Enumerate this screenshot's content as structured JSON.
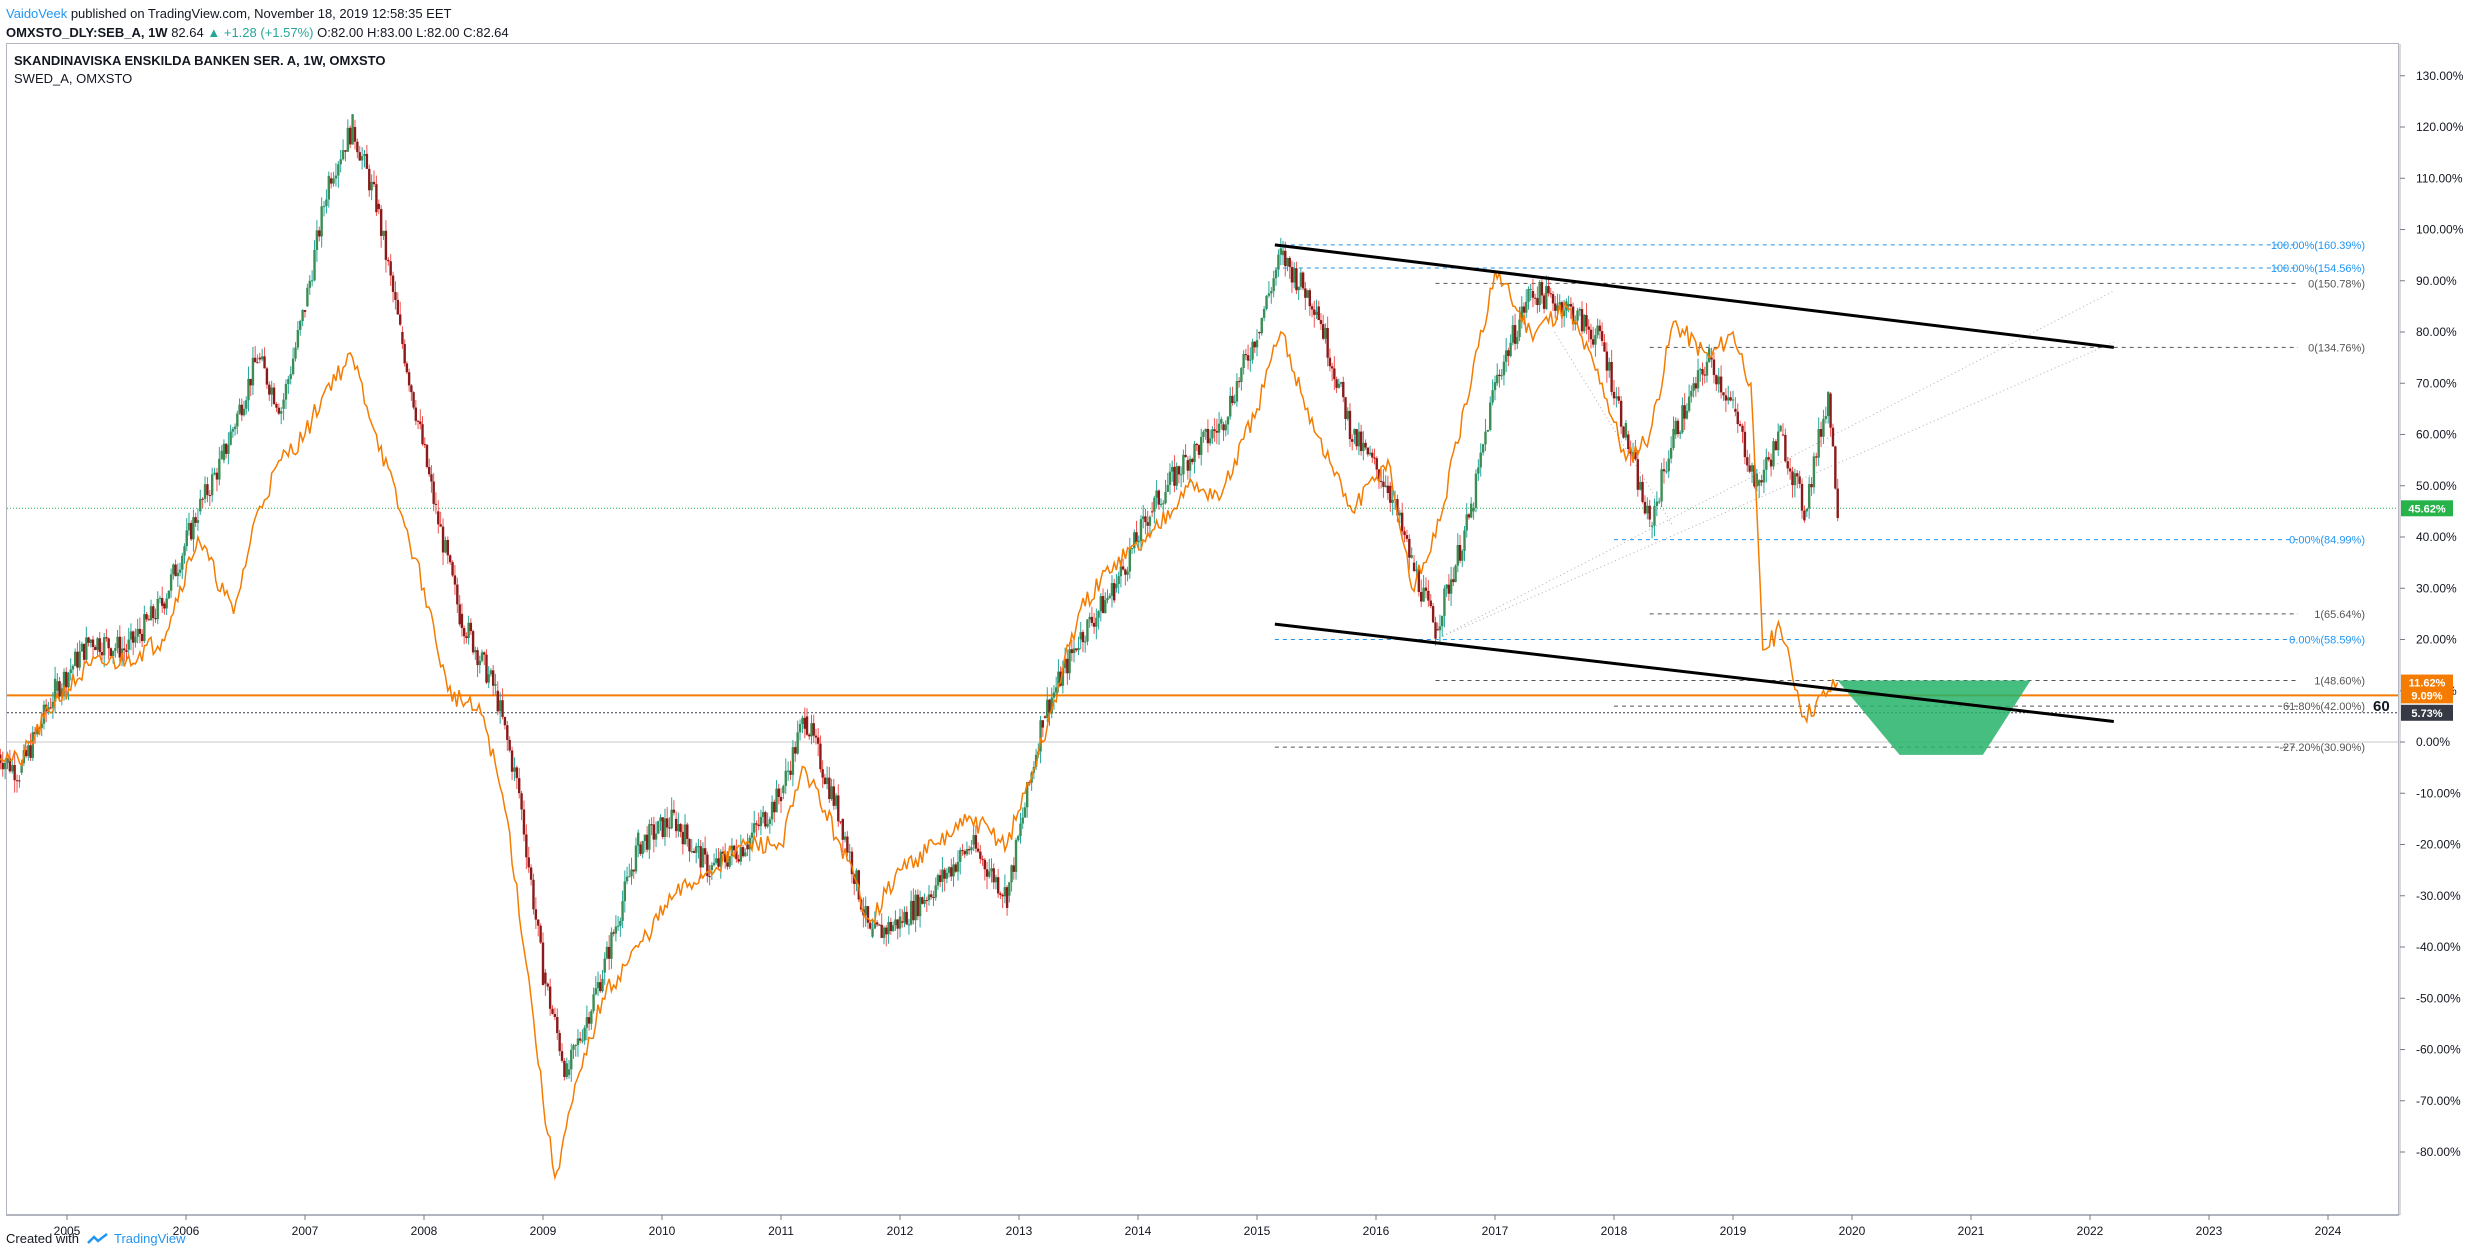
{
  "header": {
    "author": "VaidoVeek",
    "published_text": "published on TradingView.com, November 18, 2019 12:58:35 EET",
    "symbol_line": "OMXSTO_DLY:SEB_A, 1W",
    "last": "82.64",
    "change": "▲ +1.28 (+1.57%)",
    "ohlc": "O:82.00 H:83.00 L:82.00 C:82.64"
  },
  "title_block": {
    "main": "SKANDINAVISKA ENSKILDA BANKEN SER. A, 1W, OMXSTO",
    "compare": "SWED_A, OMXSTO"
  },
  "footer": {
    "created_with": "Created with",
    "brand": "TradingView"
  },
  "colors": {
    "up": "#26a69a",
    "down": "#ef5350",
    "candle_body_up": "#3b8d54",
    "candle_body_down": "#8b1a1a",
    "compare_line": "#f57c00",
    "fib_blue": "#2196f3",
    "fib_gray": "#555555",
    "price_green": "#26b34a",
    "target_zone": "#26b36a"
  },
  "chart_data": {
    "type": "line",
    "y_unit": "%",
    "y_scale": "percent change from start",
    "ylim": [
      -85,
      135
    ],
    "y_ticks": [
      130,
      120,
      110,
      100,
      90,
      80,
      70,
      60,
      50,
      40,
      30,
      20,
      10,
      0,
      -10,
      -20,
      -30,
      -40,
      -50,
      -60,
      -70,
      -80
    ],
    "y_tick_labels": [
      "130.00%",
      "120.00%",
      "110.00%",
      "100.00%",
      "90.00%",
      "80.00%",
      "70.00%",
      "60.00%",
      "50.00%",
      "40.00%",
      "30.00%",
      "20.00%",
      "10.00%",
      "0.00%",
      "-10.00%",
      "-20.00%",
      "-30.00%",
      "-40.00%",
      "-50.00%",
      "-60.00%",
      "-70.00%",
      "-80.00%"
    ],
    "xlim": [
      2004.4,
      2024.5
    ],
    "x_ticks": [
      2005,
      2006,
      2007,
      2008,
      2009,
      2010,
      2011,
      2012,
      2013,
      2014,
      2015,
      2016,
      2017,
      2018,
      2019,
      2020,
      2021,
      2022,
      2023,
      2024
    ],
    "x_tick_labels": [
      "2005",
      "2006",
      "2007",
      "2008",
      "2009",
      "2010",
      "2011",
      "2012",
      "2013",
      "2014",
      "2015",
      "2016",
      "2017",
      "2018",
      "2019",
      "2020",
      "2021",
      "2022",
      "2023",
      "2024"
    ],
    "series": [
      {
        "name": "SEB_A",
        "style": "candles",
        "x": [
          2004.4,
          2004.6,
          2004.9,
          2005.2,
          2005.5,
          2005.8,
          2006.1,
          2006.3,
          2006.6,
          2006.8,
          2007.0,
          2007.2,
          2007.4,
          2007.6,
          2007.8,
          2008.1,
          2008.3,
          2008.6,
          2008.8,
          2009.0,
          2009.2,
          2009.5,
          2009.8,
          2010.1,
          2010.4,
          2010.7,
          2011.0,
          2011.2,
          2011.5,
          2011.75,
          2012.0,
          2012.3,
          2012.6,
          2012.9,
          2013.2,
          2013.5,
          2013.8,
          2014.1,
          2014.4,
          2014.7,
          2015.0,
          2015.2,
          2015.5,
          2015.8,
          2016.1,
          2016.3,
          2016.5,
          2016.8,
          2017.0,
          2017.3,
          2017.6,
          2017.9,
          2018.1,
          2018.3,
          2018.5,
          2018.8,
          2019.0,
          2019.2,
          2019.4,
          2019.6,
          2019.8,
          2019.88
        ],
        "y": [
          -2,
          -6,
          10,
          20,
          18,
          27,
          45,
          55,
          75,
          65,
          85,
          110,
          120,
          105,
          80,
          45,
          25,
          10,
          -10,
          -45,
          -65,
          -45,
          -20,
          -15,
          -25,
          -20,
          -10,
          5,
          -15,
          -38,
          -35,
          -28,
          -20,
          -30,
          5,
          20,
          30,
          45,
          55,
          62,
          80,
          95,
          85,
          60,
          50,
          35,
          22,
          45,
          70,
          88,
          85,
          78,
          60,
          42,
          60,
          75,
          65,
          50,
          60,
          45,
          68,
          45.6
        ]
      },
      {
        "name": "SWED_A",
        "style": "line",
        "x": [
          2004.4,
          2004.6,
          2004.9,
          2005.2,
          2005.5,
          2005.8,
          2006.1,
          2006.4,
          2006.6,
          2006.8,
          2007.0,
          2007.2,
          2007.4,
          2007.6,
          2007.8,
          2008.0,
          2008.2,
          2008.5,
          2008.7,
          2008.9,
          2009.0,
          2009.1,
          2009.25,
          2009.5,
          2009.8,
          2010.1,
          2010.4,
          2010.7,
          2011.0,
          2011.2,
          2011.5,
          2011.75,
          2012.0,
          2012.3,
          2012.6,
          2012.9,
          2013.2,
          2013.5,
          2013.8,
          2014.1,
          2014.4,
          2014.7,
          2015.0,
          2015.2,
          2015.5,
          2015.8,
          2016.1,
          2016.3,
          2016.5,
          2016.8,
          2017.0,
          2017.3,
          2017.6,
          2017.9,
          2018.1,
          2018.3,
          2018.5,
          2018.8,
          2019.0,
          2019.15,
          2019.25,
          2019.4,
          2019.6,
          2019.8,
          2019.88
        ],
        "y": [
          -2,
          -4,
          8,
          15,
          16,
          20,
          40,
          25,
          45,
          55,
          60,
          70,
          75,
          60,
          45,
          30,
          10,
          5,
          -15,
          -50,
          -70,
          -85,
          -70,
          -50,
          -40,
          -30,
          -25,
          -20,
          -20,
          -5,
          -20,
          -35,
          -25,
          -20,
          -15,
          -20,
          0,
          25,
          35,
          40,
          50,
          48,
          65,
          80,
          60,
          45,
          55,
          30,
          40,
          70,
          92,
          80,
          85,
          70,
          55,
          60,
          82,
          75,
          80,
          70,
          18,
          22,
          5,
          10,
          11.6
        ]
      }
    ],
    "fib_levels": [
      {
        "label": "100.00%(160.39%)",
        "y": 97,
        "color": "#2196f3"
      },
      {
        "label": "100.00%(154.56%)",
        "y": 92.5,
        "color": "#2196f3"
      },
      {
        "label": "0(150.78%)",
        "y": 89.5,
        "color": "#555555"
      },
      {
        "label": "0(134.76%)",
        "y": 77,
        "color": "#555555"
      },
      {
        "label": "0.00%(84.99%)",
        "y": 39.5,
        "color": "#2196f3"
      },
      {
        "label": "1(65.64%)",
        "y": 25,
        "color": "#555555"
      },
      {
        "label": "0.00%(58.59%)",
        "y": 20,
        "color": "#2196f3"
      },
      {
        "label": "1(48.60%)",
        "y": 12,
        "color": "#555555"
      },
      {
        "label": "61.80%(42.00%)",
        "y": 7,
        "color": "#555555"
      },
      {
        "label": "-27.20%(30.90%)",
        "y": -1,
        "color": "#555555"
      }
    ],
    "price_labels": [
      {
        "text": "45.62%",
        "y": 45.6,
        "color": "#26b34a"
      },
      {
        "text": "11.62%",
        "y": 11.6,
        "color": "#f57c00"
      },
      {
        "text": "9.09%",
        "y": 9.1,
        "color": "#f57c00"
      },
      {
        "text": "5.73%",
        "y": 5.7,
        "color": "#363a45"
      }
    ],
    "annotation_text": "60",
    "grid": false,
    "legend": "top-left"
  }
}
